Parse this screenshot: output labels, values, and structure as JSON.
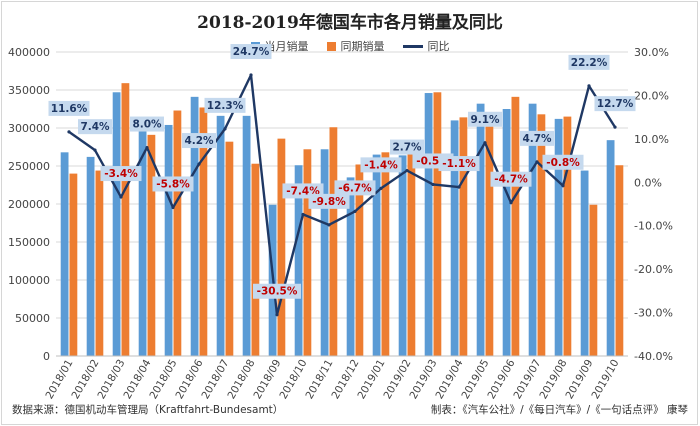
{
  "chart_data": {
    "type": "bar",
    "title": "2018-2019年德国车市各月销量及同比",
    "categories": [
      "2018/01",
      "2018/02",
      "2018/03",
      "2018/04",
      "2018/05",
      "2018/06",
      "2018/07",
      "2018/08",
      "2018/09",
      "2018/10",
      "2018/11",
      "2018/12",
      "2019/01",
      "2019/02",
      "2019/03",
      "2019/04",
      "2019/05",
      "2019/06",
      "2019/07",
      "2019/08",
      "2019/09",
      "2019/10"
    ],
    "series": [
      {
        "name": "当月销量",
        "color": "#5b9bd5",
        "axis": "left",
        "values": [
          268000,
          262000,
          347000,
          314000,
          304000,
          341000,
          316000,
          316000,
          199000,
          251000,
          272000,
          235000,
          265000,
          264000,
          346000,
          310000,
          332000,
          325000,
          332000,
          312000,
          244000,
          284000
        ]
      },
      {
        "name": "同期销量",
        "color": "#ed7d31",
        "axis": "left",
        "values": [
          240000,
          244000,
          359000,
          291000,
          323000,
          327000,
          282000,
          253000,
          286000,
          272000,
          301000,
          252000,
          268000,
          268000,
          347000,
          314000,
          304000,
          341000,
          318000,
          315000,
          199000,
          251000
        ]
      },
      {
        "name": "同比",
        "color": "#1f3864",
        "axis": "right",
        "type": "line",
        "values": [
          11.6,
          7.4,
          -3.4,
          8.0,
          -5.8,
          4.2,
          12.3,
          24.7,
          -30.5,
          -7.4,
          -9.8,
          -6.7,
          -1.4,
          2.7,
          -0.5,
          -1.1,
          9.1,
          -4.7,
          4.7,
          -0.8,
          22.2,
          12.7
        ],
        "labels": [
          "11.6%",
          "7.4%",
          "-3.4%",
          "8.0%",
          "-5.8%",
          "4.2%",
          "12.3%",
          "24.7%",
          "-30.5%",
          "-7.4%",
          "-9.8%",
          "-6.7%",
          "-1.4%",
          "2.7%",
          "-0.5%",
          "-1.1%",
          "9.1%",
          "-4.7%",
          "4.7%",
          "-0.8%",
          "22.2%",
          "12.7%"
        ]
      }
    ],
    "y_left": {
      "min": 0,
      "max": 400000,
      "ticks": [
        "0",
        "50000",
        "100000",
        "150000",
        "200000",
        "250000",
        "300000",
        "350000",
        "400000"
      ]
    },
    "y_right": {
      "min": -40,
      "max": 30,
      "ticks": [
        "-40.0%",
        "-30.0%",
        "-20.0%",
        "-10.0%",
        "0.0%",
        "10.0%",
        "20.0%",
        "30.0%"
      ]
    },
    "grid": true,
    "legend_position": "top-center"
  },
  "footer": {
    "source": "数据来源：德国机动车管理局（Kraftfahrt-Bundesamt）",
    "credit": "制表：《汽车公社》/《每日汽车》/《一句话点评》 康琴"
  }
}
